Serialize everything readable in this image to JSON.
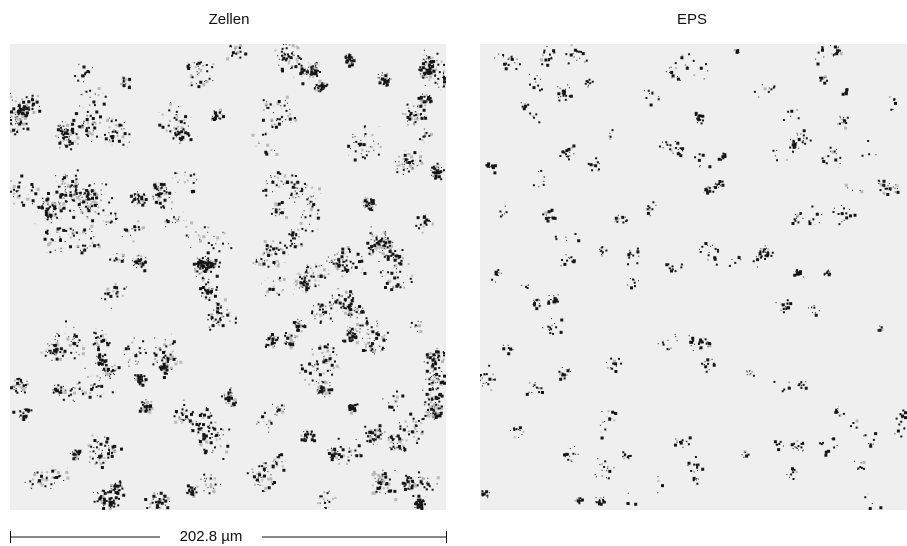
{
  "panels": [
    {
      "title": "Zellen"
    },
    {
      "title": "EPS"
    }
  ],
  "scale_bar": {
    "label": "202.8 µm"
  }
}
